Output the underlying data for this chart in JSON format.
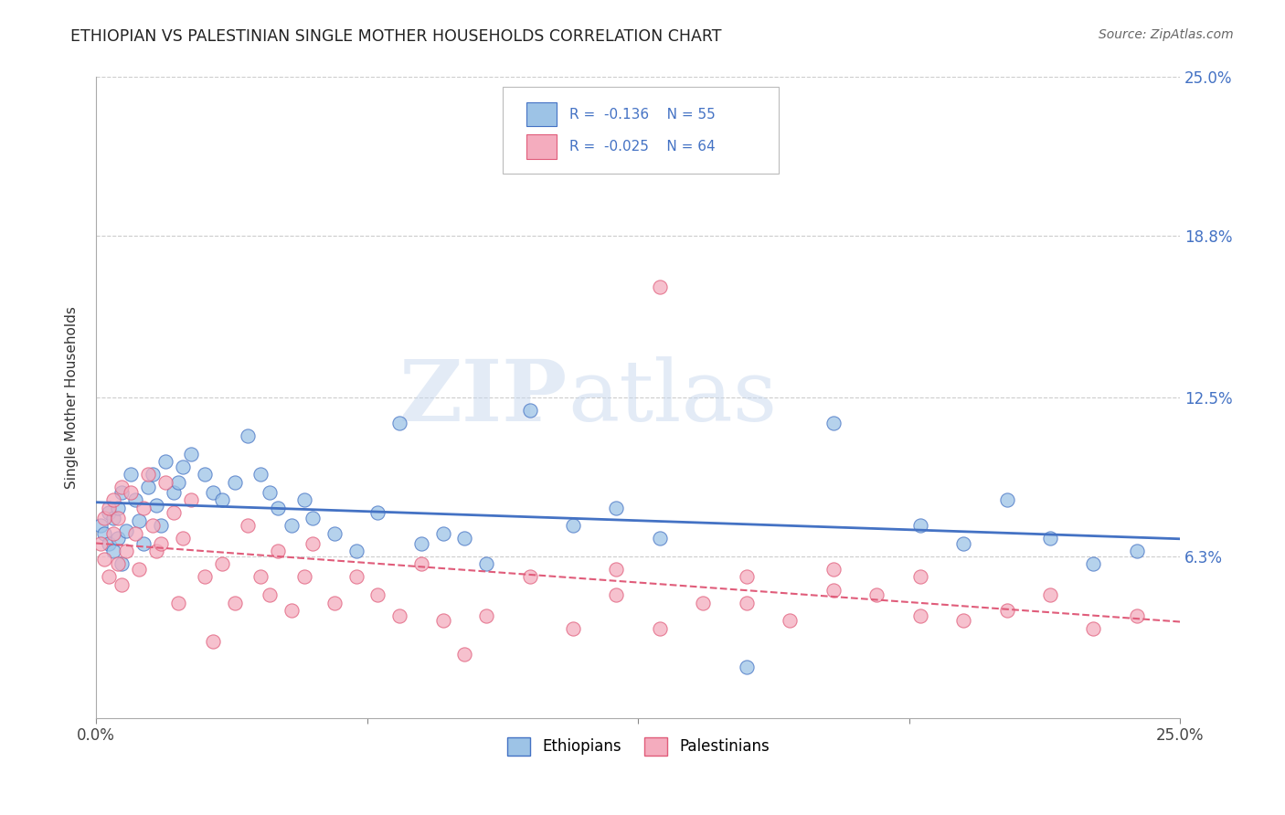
{
  "title": "ETHIOPIAN VS PALESTINIAN SINGLE MOTHER HOUSEHOLDS CORRELATION CHART",
  "source": "Source: ZipAtlas.com",
  "ylabel": "Single Mother Households",
  "xmin": 0.0,
  "xmax": 0.25,
  "ymin": 0.0,
  "ymax": 0.25,
  "yticks": [
    0.0,
    0.063,
    0.125,
    0.188,
    0.25
  ],
  "ytick_labels": [
    "",
    "6.3%",
    "12.5%",
    "18.8%",
    "25.0%"
  ],
  "xticks": [
    0.0,
    0.0625,
    0.125,
    0.1875,
    0.25
  ],
  "xtick_labels": [
    "0.0%",
    "",
    "",
    "",
    "25.0%"
  ],
  "blue_color": "#4472c4",
  "pink_color": "#e05c7a",
  "blue_fill": "#9dc3e6",
  "pink_fill": "#f4acbe",
  "grid_color": "#cccccc",
  "background_color": "#ffffff",
  "title_fontsize": 12.5,
  "label_fontsize": 11,
  "eth_x": [
    0.001,
    0.002,
    0.003,
    0.003,
    0.004,
    0.004,
    0.005,
    0.005,
    0.006,
    0.006,
    0.007,
    0.008,
    0.009,
    0.01,
    0.011,
    0.012,
    0.013,
    0.014,
    0.015,
    0.016,
    0.018,
    0.019,
    0.02,
    0.022,
    0.025,
    0.027,
    0.029,
    0.032,
    0.035,
    0.038,
    0.04,
    0.042,
    0.045,
    0.048,
    0.05,
    0.055,
    0.06,
    0.065,
    0.07,
    0.075,
    0.08,
    0.085,
    0.09,
    0.1,
    0.11,
    0.12,
    0.13,
    0.15,
    0.17,
    0.19,
    0.2,
    0.21,
    0.22,
    0.23,
    0.24
  ],
  "eth_y": [
    0.075,
    0.072,
    0.08,
    0.068,
    0.065,
    0.078,
    0.07,
    0.082,
    0.06,
    0.088,
    0.073,
    0.095,
    0.085,
    0.077,
    0.068,
    0.09,
    0.095,
    0.083,
    0.075,
    0.1,
    0.088,
    0.092,
    0.098,
    0.103,
    0.095,
    0.088,
    0.085,
    0.092,
    0.11,
    0.095,
    0.088,
    0.082,
    0.075,
    0.085,
    0.078,
    0.072,
    0.065,
    0.08,
    0.115,
    0.068,
    0.072,
    0.07,
    0.06,
    0.12,
    0.075,
    0.082,
    0.07,
    0.02,
    0.115,
    0.075,
    0.068,
    0.085,
    0.07,
    0.06,
    0.065
  ],
  "pal_x": [
    0.001,
    0.002,
    0.002,
    0.003,
    0.003,
    0.004,
    0.004,
    0.005,
    0.005,
    0.006,
    0.006,
    0.007,
    0.008,
    0.009,
    0.01,
    0.011,
    0.012,
    0.013,
    0.014,
    0.015,
    0.016,
    0.018,
    0.019,
    0.02,
    0.022,
    0.025,
    0.027,
    0.029,
    0.032,
    0.035,
    0.038,
    0.04,
    0.042,
    0.045,
    0.048,
    0.05,
    0.055,
    0.06,
    0.065,
    0.07,
    0.075,
    0.08,
    0.085,
    0.09,
    0.1,
    0.11,
    0.12,
    0.13,
    0.15,
    0.17,
    0.19,
    0.2,
    0.21,
    0.22,
    0.23,
    0.24,
    0.12,
    0.13,
    0.14,
    0.15,
    0.16,
    0.17,
    0.18,
    0.19
  ],
  "pal_y": [
    0.068,
    0.062,
    0.078,
    0.055,
    0.082,
    0.072,
    0.085,
    0.06,
    0.078,
    0.052,
    0.09,
    0.065,
    0.088,
    0.072,
    0.058,
    0.082,
    0.095,
    0.075,
    0.065,
    0.068,
    0.092,
    0.08,
    0.045,
    0.07,
    0.085,
    0.055,
    0.03,
    0.06,
    0.045,
    0.075,
    0.055,
    0.048,
    0.065,
    0.042,
    0.055,
    0.068,
    0.045,
    0.055,
    0.048,
    0.04,
    0.06,
    0.038,
    0.025,
    0.04,
    0.055,
    0.035,
    0.048,
    0.168,
    0.045,
    0.05,
    0.055,
    0.038,
    0.042,
    0.048,
    0.035,
    0.04,
    0.058,
    0.035,
    0.045,
    0.055,
    0.038,
    0.058,
    0.048,
    0.04
  ]
}
